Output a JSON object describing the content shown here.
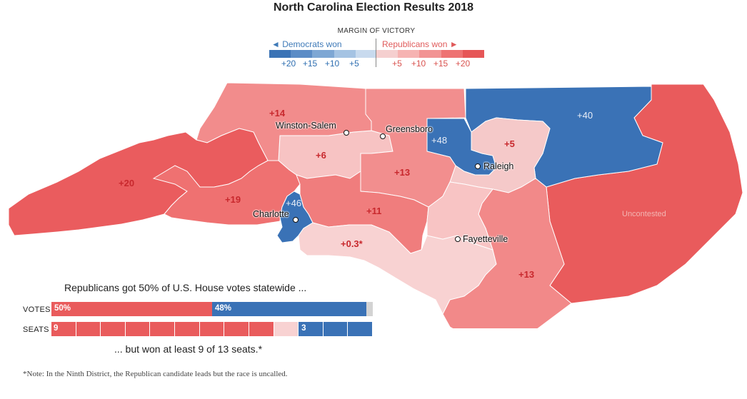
{
  "title": "North Carolina Election Results 2018",
  "legend": {
    "heading": "MARGIN OF VICTORY",
    "dem_label": "◄ Democrats won",
    "rep_label": "Republicans won ►",
    "dem_ticks": [
      "+20",
      "+15",
      "+10",
      "+5"
    ],
    "rep_ticks": [
      "+5",
      "+10",
      "+15",
      "+20"
    ],
    "dem_colors": [
      "#3b73b5",
      "#5b8cc6",
      "#7ea7d4",
      "#a5c3e3",
      "#c8daee"
    ],
    "rep_colors": [
      "#f5cfcf",
      "#f6b3b2",
      "#f29393",
      "#ee7272",
      "#e65657"
    ]
  },
  "districts": [
    {
      "id": 1,
      "margin": "+40",
      "party": "D"
    },
    {
      "id": 2,
      "margin": "+5",
      "party": "R"
    },
    {
      "id": 3,
      "margin": "Uncontested",
      "party": "R"
    },
    {
      "id": 4,
      "margin": "+48",
      "party": "D"
    },
    {
      "id": 5,
      "margin": "+14",
      "party": "R"
    },
    {
      "id": 6,
      "margin": "+13",
      "party": "R"
    },
    {
      "id": 7,
      "margin": "+13",
      "party": "R"
    },
    {
      "id": 8,
      "margin": "+11",
      "party": "R"
    },
    {
      "id": 9,
      "margin": "+0.3*",
      "party": "R"
    },
    {
      "id": 10,
      "margin": "+19",
      "party": "R"
    },
    {
      "id": 11,
      "margin": "+20",
      "party": "R"
    },
    {
      "id": 12,
      "margin": "+46",
      "party": "D"
    },
    {
      "id": 13,
      "margin": "+6",
      "party": "R"
    }
  ],
  "labels": {
    "d1": "+40",
    "d2": "+5",
    "d3": "Uncontested",
    "d4": "+48",
    "d5": "+14",
    "d6": "+13",
    "d7": "+13",
    "d8": "+11",
    "d9": "+0.3*",
    "d10": "+19",
    "d11": "+20",
    "d12": "+46",
    "d13": "+6"
  },
  "cities": {
    "winston_salem": "Winston-Salem",
    "greensboro": "Greensboro",
    "raleigh": "Raleigh",
    "charlotte": "Charlotte",
    "fayetteville": "Fayetteville"
  },
  "summary": {
    "top_text": "Republicans got 50% of U.S. House votes statewide ...",
    "votes_label": "VOTES",
    "seats_label": "SEATS",
    "rep_vote_pct": 50,
    "dem_vote_pct": 48,
    "rep_vote_text": "50%",
    "dem_vote_text": "48%",
    "rep_seats": 9,
    "uncalled_seats": 1,
    "dem_seats": 3,
    "total_seats": 13,
    "rep_seats_text": "9",
    "dem_seats_text": "3",
    "bottom_text": "... but won at least 9 of 13 seats.*"
  },
  "note": "*Note: In the Ninth District, the Republican candidate leads but the race is uncalled."
}
